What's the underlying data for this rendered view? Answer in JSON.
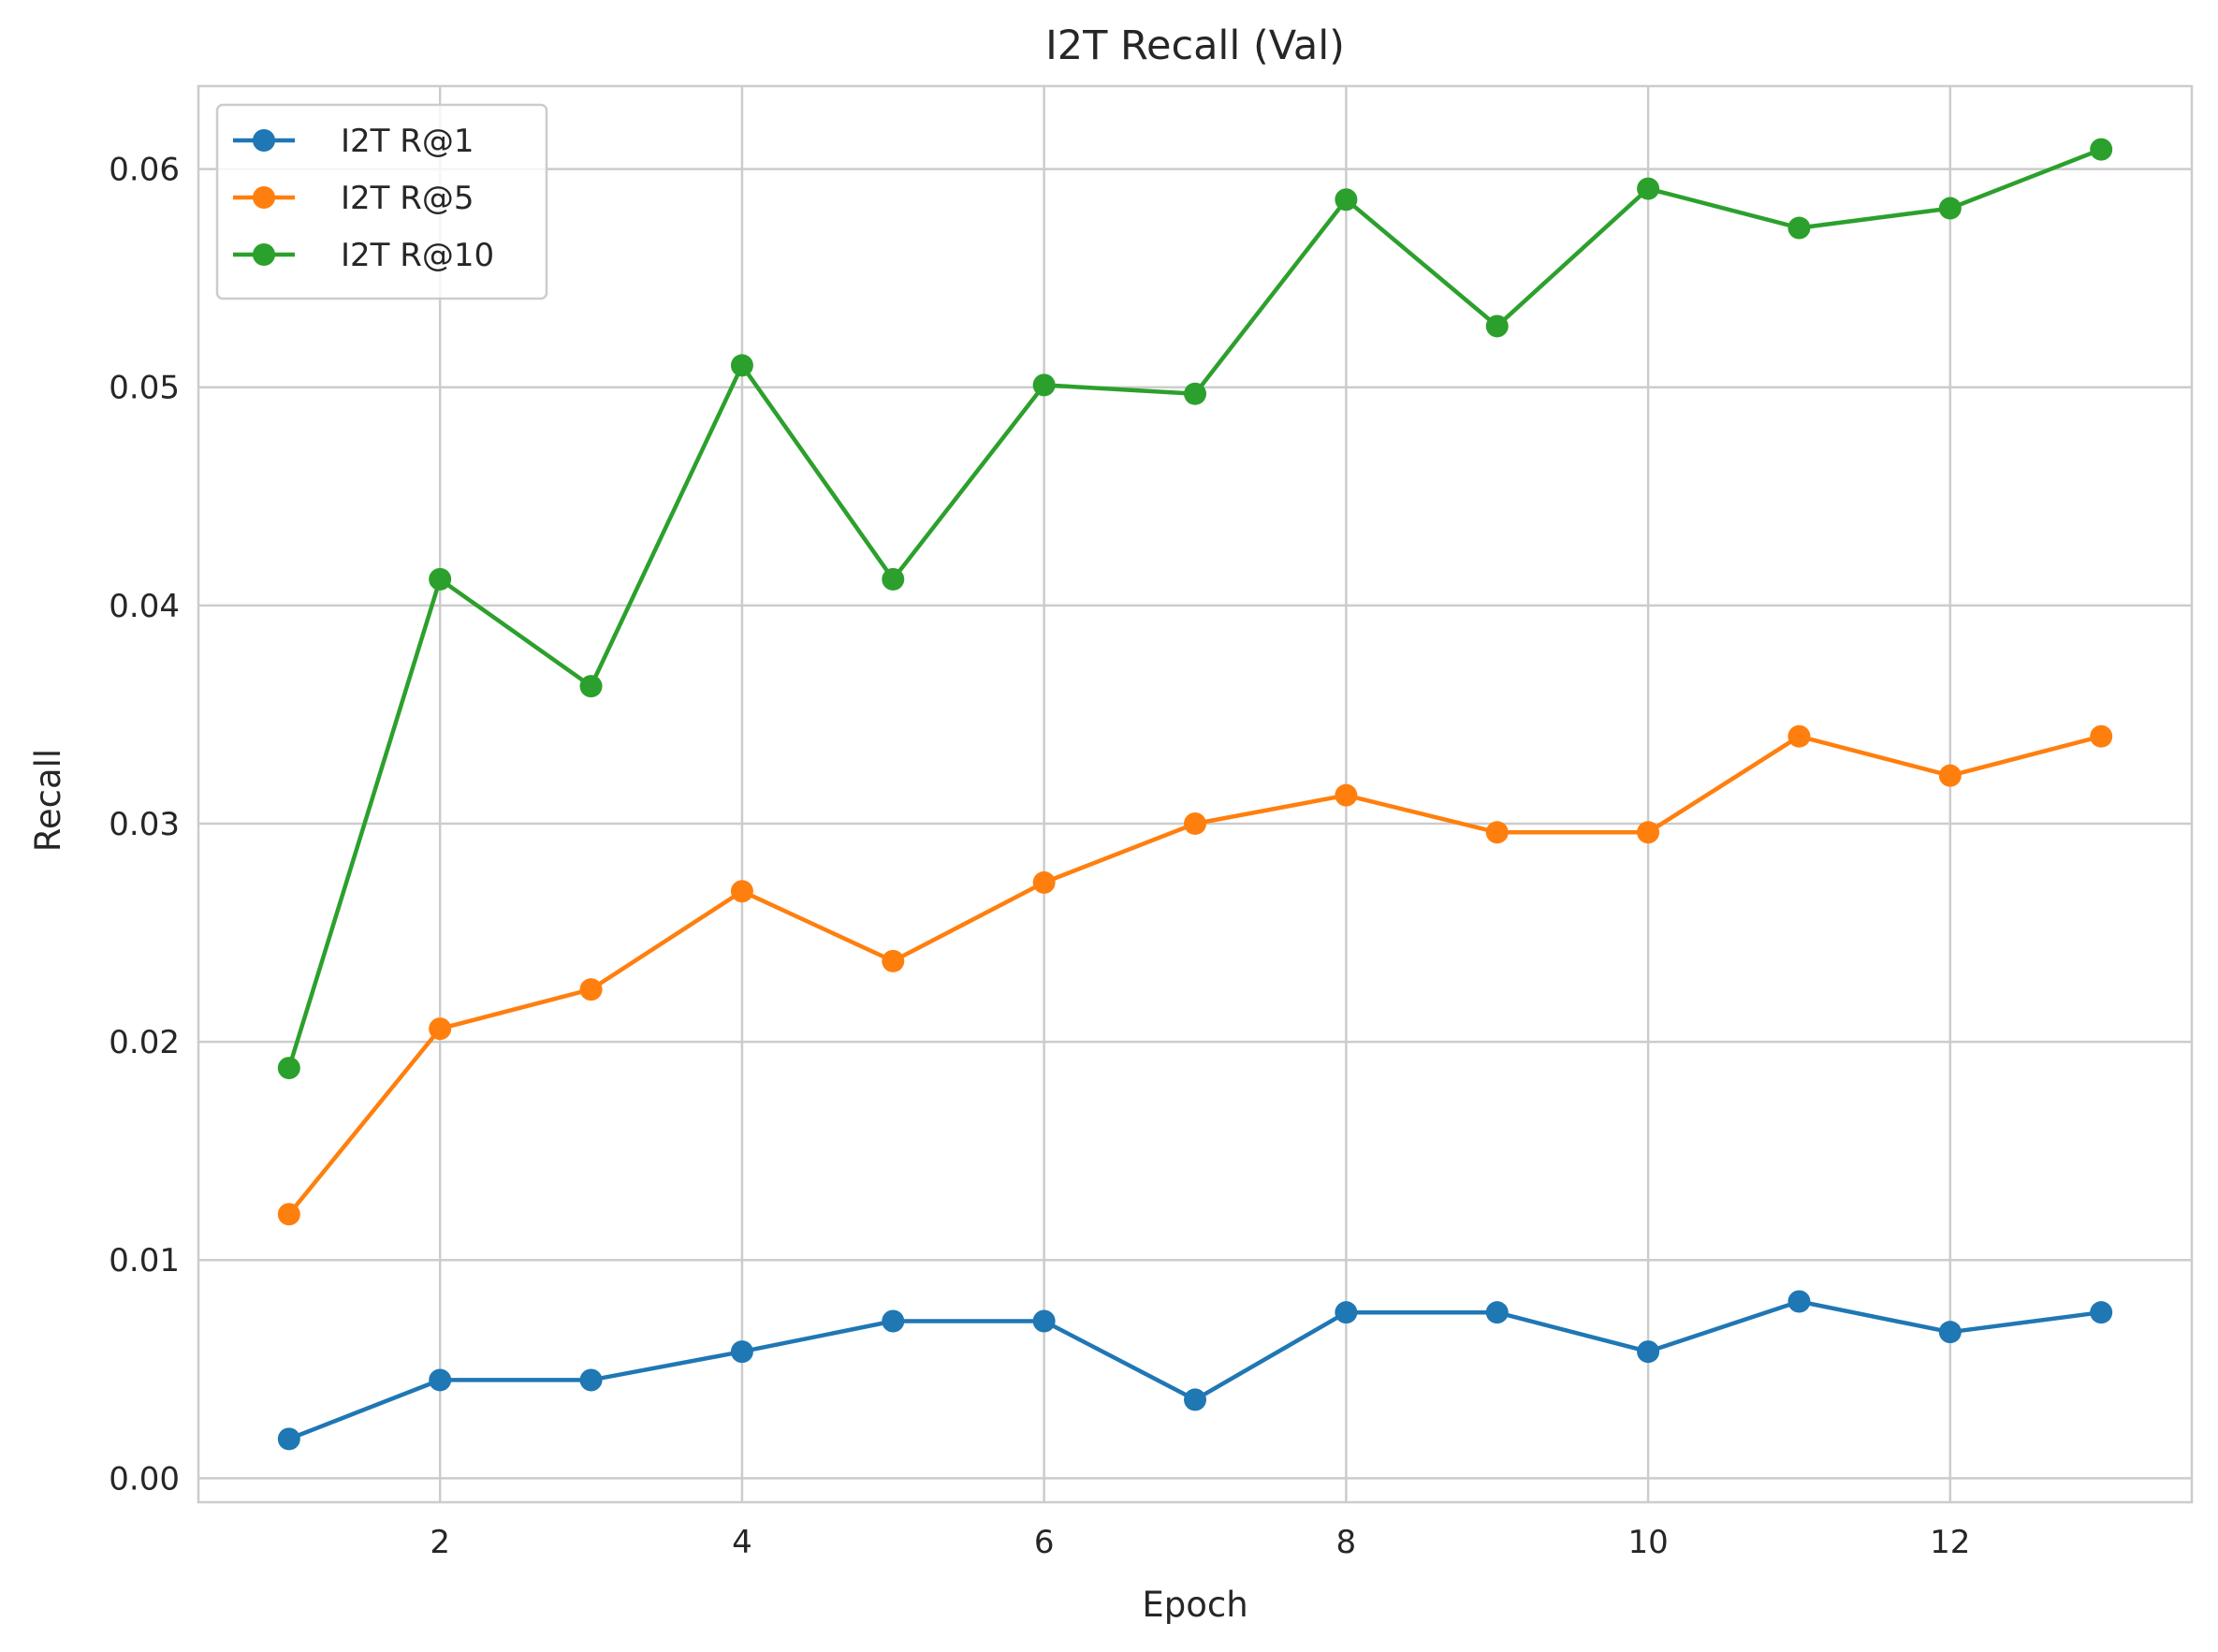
{
  "chart_data": {
    "type": "line",
    "title": "I2T Recall (Val)",
    "xlabel": "Epoch",
    "ylabel": "Recall",
    "xlim": [
      0.4,
      13.6
    ],
    "ylim": [
      -0.0011,
      0.0638
    ],
    "grid": true,
    "legend_position": "top-left",
    "x_ticks": [
      2,
      4,
      6,
      8,
      10,
      12
    ],
    "x_tick_labels": [
      "2",
      "4",
      "6",
      "8",
      "10",
      "12"
    ],
    "y_ticks": [
      0.0,
      0.01,
      0.02,
      0.03,
      0.04,
      0.05,
      0.06
    ],
    "y_tick_labels": [
      "0.00",
      "0.01",
      "0.02",
      "0.03",
      "0.04",
      "0.05",
      "0.06"
    ],
    "x": [
      1,
      2,
      3,
      4,
      5,
      6,
      7,
      8,
      9,
      10,
      11,
      12,
      13
    ],
    "series": [
      {
        "name": "I2T R@1",
        "color": "#1f77b4",
        "values": [
          0.0018,
          0.0045,
          0.0045,
          0.0058,
          0.0072,
          0.0072,
          0.0036,
          0.0076,
          0.0076,
          0.0058,
          0.0081,
          0.0067,
          0.0076
        ]
      },
      {
        "name": "I2T R@5",
        "color": "#ff7f0e",
        "values": [
          0.0121,
          0.0206,
          0.0224,
          0.0269,
          0.0237,
          0.0273,
          0.03,
          0.0313,
          0.0296,
          0.0296,
          0.034,
          0.0322,
          0.034
        ]
      },
      {
        "name": "I2T R@10",
        "color": "#2ca02c",
        "values": [
          0.0188,
          0.0412,
          0.0363,
          0.051,
          0.0412,
          0.0501,
          0.0497,
          0.0586,
          0.0528,
          0.0591,
          0.0573,
          0.0582,
          0.0609
        ]
      }
    ]
  }
}
